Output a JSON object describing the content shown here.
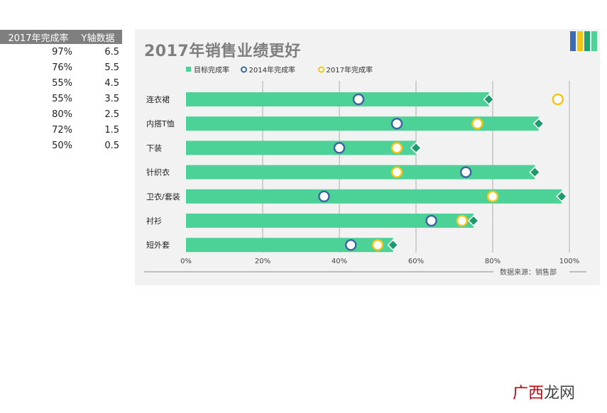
{
  "table": {
    "headers": [
      "2017年完成率",
      "Y轴数据"
    ],
    "rows": [
      [
        "97%",
        "6.5"
      ],
      [
        "76%",
        "5.5"
      ],
      [
        "55%",
        "4.5"
      ],
      [
        "55%",
        "3.5"
      ],
      [
        "80%",
        "2.5"
      ],
      [
        "72%",
        "1.5"
      ],
      [
        "50%",
        "0.5"
      ]
    ]
  },
  "chart_data": {
    "type": "bar",
    "title": "2017年销售业绩更好",
    "categories": [
      "连衣裙",
      "内搭T恤",
      "下装",
      "针织衣",
      "卫衣/套装",
      "衬衫",
      "短外套"
    ],
    "series": [
      {
        "name": "目标完成率",
        "values": [
          79,
          92,
          60,
          91,
          98,
          75,
          54
        ],
        "color": "#4cd197",
        "marker": "bar-with-diamond"
      },
      {
        "name": "2014年完成率",
        "values": [
          45,
          55,
          40,
          73,
          36,
          64,
          43
        ],
        "color": "#3e67a0",
        "marker": "circle"
      },
      {
        "name": "2017年完成率",
        "values": [
          97,
          76,
          55,
          55,
          80,
          72,
          50
        ],
        "color": "#f3c41a",
        "marker": "circle"
      }
    ],
    "x_ticks": [
      "0%",
      "20%",
      "40%",
      "60%",
      "80%",
      "100%"
    ],
    "xlim": [
      0,
      100
    ],
    "grid": true,
    "legend_position": "top-left",
    "source_note": "数据来源：销售部",
    "diamond_color": "#1f9a6c",
    "gridline_color": "#d0d0d0"
  },
  "watermark": {
    "accent": "广西",
    "rest": "龙网"
  }
}
